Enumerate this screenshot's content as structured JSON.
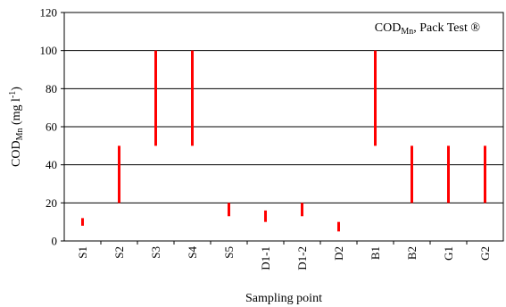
{
  "chart_data": {
    "type": "range-bar",
    "xlabel": "Sampling point",
    "ylabel": {
      "main": "COD",
      "sub": "Mn",
      "unit_prefix": " (mg l",
      "unit_sup": "-1",
      "unit_suffix": ")"
    },
    "annotation": {
      "main": "COD",
      "sub": "Mn",
      "rest": ", Pack Test ®",
      "position": "top-right"
    },
    "ylim": [
      0,
      120
    ],
    "yticks": [
      0,
      20,
      40,
      60,
      80,
      100,
      120
    ],
    "grid": "horizontal",
    "bar_color": "#ff0000",
    "categories": [
      "S1",
      "S2",
      "S3",
      "S4",
      "S5",
      "D1-1",
      "D1-2",
      "D2",
      "B1",
      "B2",
      "G1",
      "G2"
    ],
    "ranges": [
      [
        8,
        12
      ],
      [
        20,
        50
      ],
      [
        50,
        100
      ],
      [
        50,
        100
      ],
      [
        13,
        20
      ],
      [
        10,
        16
      ],
      [
        13,
        20
      ],
      [
        5,
        10
      ],
      [
        50,
        100
      ],
      [
        20,
        50
      ],
      [
        20,
        50
      ],
      [
        20,
        50
      ]
    ]
  }
}
